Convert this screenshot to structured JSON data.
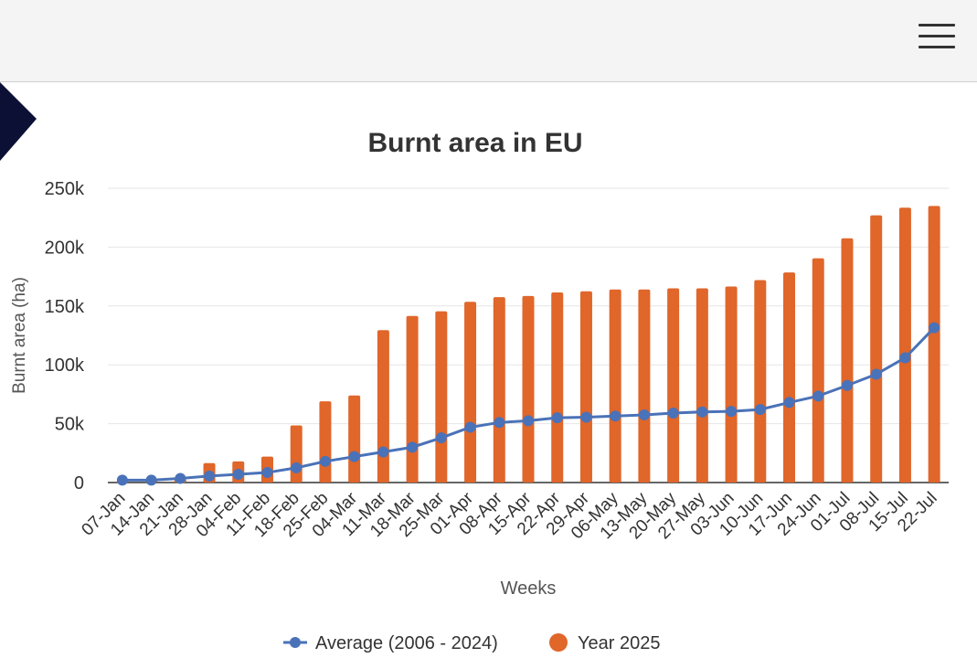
{
  "header": {
    "menu_icon": "hamburger-menu-icon"
  },
  "colors": {
    "average": "#4a72b8",
    "year2025": "#e0662a",
    "arrow": "#0d1035",
    "grid": "#e6e6e6",
    "text": "#333333",
    "label": "#555555"
  },
  "chart_data": {
    "type": "bar",
    "title": "Burnt area in EU",
    "xlabel": "Weeks",
    "ylabel": "Burnt area (ha)",
    "ylim": [
      0,
      250000
    ],
    "yticks": [
      0,
      50000,
      100000,
      150000,
      200000,
      250000
    ],
    "ytick_labels": [
      "0",
      "50k",
      "100k",
      "150k",
      "200k",
      "250k"
    ],
    "categories": [
      "07-Jan",
      "14-Jan",
      "21-Jan",
      "28-Jan",
      "04-Feb",
      "11-Feb",
      "18-Feb",
      "25-Feb",
      "04-Mar",
      "11-Mar",
      "18-Mar",
      "25-Mar",
      "01-Apr",
      "08-Apr",
      "15-Apr",
      "22-Apr",
      "29-Apr",
      "06-May",
      "13-May",
      "20-May",
      "27-May",
      "03-Jun",
      "10-Jun",
      "17-Jun",
      "24-Jun",
      "01-Jul",
      "08-Jul",
      "15-Jul",
      "22-Jul"
    ],
    "series": [
      {
        "name": "Year 2025",
        "type": "bar",
        "values": [
          1000,
          1500,
          3000,
          16500,
          18000,
          22000,
          48500,
          69000,
          74000,
          129500,
          141500,
          145500,
          153500,
          157500,
          158500,
          161500,
          162500,
          164000,
          164000,
          165000,
          165000,
          166500,
          172000,
          178500,
          190500,
          207500,
          227000,
          233500,
          235000
        ]
      },
      {
        "name": "Average (2006 - 2024)",
        "type": "line",
        "values": [
          2000,
          2000,
          3500,
          5500,
          7000,
          8500,
          12500,
          18000,
          22000,
          26000,
          30000,
          38000,
          47000,
          51000,
          52500,
          55000,
          55500,
          56500,
          57500,
          59000,
          60000,
          60500,
          62000,
          68000,
          73500,
          82500,
          92000,
          106000,
          131500
        ]
      }
    ],
    "legend": [
      {
        "name": "Average (2006 - 2024)",
        "marker": "line-dot"
      },
      {
        "name": "Year 2025",
        "marker": "circle"
      }
    ],
    "legend_position": "bottom-center",
    "grid": true
  }
}
